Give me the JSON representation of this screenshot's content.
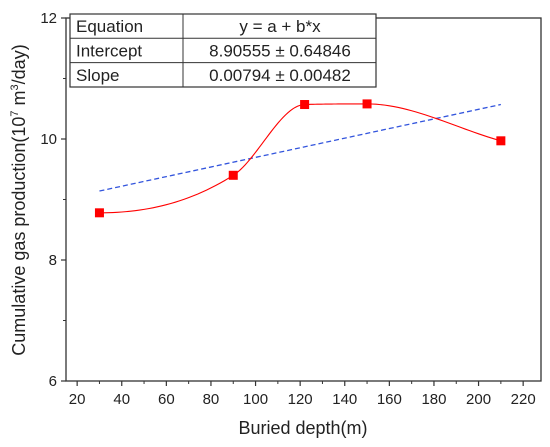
{
  "chart_data": {
    "type": "scatter",
    "xlabel": "Buried depth(m)",
    "ylabel_main": "Cumulative gas production(10",
    "ylabel_exp1": "7",
    "ylabel_mid": " m",
    "ylabel_exp2": "3",
    "ylabel_end": "/day)",
    "xlim": [
      15,
      228
    ],
    "ylim": [
      6,
      12
    ],
    "xticks": [
      20,
      40,
      60,
      80,
      100,
      120,
      140,
      160,
      180,
      200,
      220
    ],
    "yticks": [
      6,
      8,
      10,
      12
    ],
    "grid": false,
    "series": [
      {
        "style": "markers with smooth spline",
        "color": "#ff0000",
        "x": [
          30,
          90,
          122,
          150,
          210
        ],
        "y": [
          8.78,
          9.4,
          10.57,
          10.58,
          9.97
        ]
      },
      {
        "style": "dashed linear fit",
        "color": "#3355dd",
        "x": [
          30,
          210
        ],
        "y": [
          9.14,
          10.57
        ]
      }
    ],
    "fit_table": {
      "headers": [
        "Equation",
        "y = a + b*x"
      ],
      "rows": [
        [
          "Intercept",
          "8.90555 ± 0.64846"
        ],
        [
          "Slope",
          "0.00794 ± 0.00482"
        ]
      ],
      "placement": "top-left"
    }
  }
}
